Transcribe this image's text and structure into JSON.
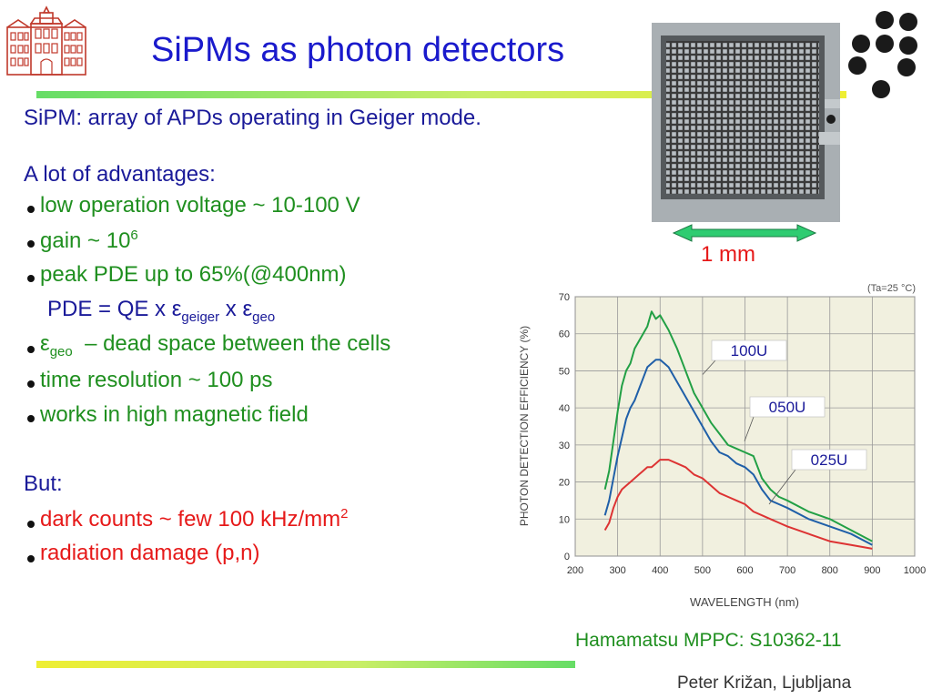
{
  "slide": {
    "title": "SiPMs as photon detectors",
    "intro": "SiPM: array of APDs operating in Geiger mode.",
    "advantages_heading": "A lot of advantages:",
    "advantages": [
      {
        "text": "low operation voltage ~ 10-100 V"
      },
      {
        "text": "gain ~ 10",
        "sup": "6"
      },
      {
        "text": "peak PDE up to 65%(@400nm)"
      }
    ],
    "pde_formula": {
      "lead": "PDE = QE x ε",
      "sub1": "geiger",
      "mid": " x ε",
      "sub2": "geo"
    },
    "advantages2": [
      {
        "lead": "ε",
        "sub": "geo",
        "text": "  – dead space between the cells"
      },
      {
        "text": "time resolution ~ 100 ps"
      },
      {
        "text": "works in high magnetic field"
      }
    ],
    "but_heading": "But:",
    "disadvantages": [
      {
        "text": "dark counts ~ few 100 kHz/mm",
        "sup": "2"
      },
      {
        "text": "radiation damage (p,n)"
      }
    ],
    "scale_label": "1 mm",
    "caption": "Hamamatsu MPPC: S10362-11",
    "footer": "Peter Križan, Ljubljana"
  },
  "colors": {
    "title": "#1a1acc",
    "green": "#1f8f1f",
    "red": "#e61919",
    "blue": "#1a1a99"
  },
  "chart_data": {
    "type": "line",
    "title": "",
    "annotation": "(Ta=25 °C)",
    "xlabel": "WAVELENGTH (nm)",
    "ylabel": "PHOTON DETECTION EFFICIENCY (%)",
    "xlim": [
      200,
      1000
    ],
    "ylim": [
      0,
      70
    ],
    "xticks": [
      200,
      300,
      400,
      500,
      600,
      700,
      800,
      900,
      1000
    ],
    "yticks": [
      0,
      10,
      20,
      30,
      40,
      50,
      60,
      70
    ],
    "grid": true,
    "series": [
      {
        "name": "100U",
        "color": "#22a045",
        "x": [
          270,
          280,
          290,
          300,
          310,
          320,
          330,
          340,
          350,
          360,
          370,
          380,
          390,
          400,
          410,
          420,
          440,
          460,
          480,
          500,
          520,
          540,
          560,
          580,
          600,
          620,
          640,
          660,
          680,
          700,
          750,
          800,
          850,
          900
        ],
        "y": [
          18,
          23,
          31,
          39,
          46,
          50,
          52,
          56,
          58,
          60,
          62,
          66,
          64,
          65,
          63,
          61,
          56,
          50,
          44,
          40,
          36,
          33,
          30,
          29,
          28,
          27,
          21,
          18,
          16,
          15,
          12,
          10,
          7,
          4
        ]
      },
      {
        "name": "050U",
        "color": "#1f5fa8",
        "x": [
          270,
          280,
          290,
          300,
          310,
          320,
          330,
          340,
          350,
          360,
          370,
          380,
          390,
          400,
          410,
          420,
          440,
          460,
          480,
          500,
          520,
          540,
          560,
          580,
          600,
          620,
          640,
          660,
          680,
          700,
          750,
          800,
          850,
          900
        ],
        "y": [
          11,
          15,
          21,
          27,
          32,
          37,
          40,
          42,
          45,
          48,
          51,
          52,
          53,
          53,
          52,
          51,
          47,
          43,
          39,
          35,
          31,
          28,
          27,
          25,
          24,
          22,
          18,
          15,
          14,
          13,
          10,
          8,
          6,
          3
        ]
      },
      {
        "name": "025U",
        "color": "#dd3333",
        "x": [
          270,
          280,
          290,
          300,
          310,
          320,
          330,
          340,
          350,
          360,
          370,
          380,
          390,
          400,
          410,
          420,
          440,
          460,
          480,
          500,
          520,
          540,
          560,
          580,
          600,
          620,
          640,
          660,
          680,
          700,
          750,
          800,
          850,
          900
        ],
        "y": [
          7,
          9,
          13,
          16,
          18,
          19,
          20,
          21,
          22,
          23,
          24,
          24,
          25,
          26,
          26,
          26,
          25,
          24,
          22,
          21,
          19,
          17,
          16,
          15,
          14,
          12,
          11,
          10,
          9,
          8,
          6,
          4,
          3,
          2
        ]
      }
    ],
    "labels": [
      {
        "text": "100U",
        "series": 0
      },
      {
        "text": "050U",
        "series": 1
      },
      {
        "text": "025U",
        "series": 2
      }
    ]
  }
}
